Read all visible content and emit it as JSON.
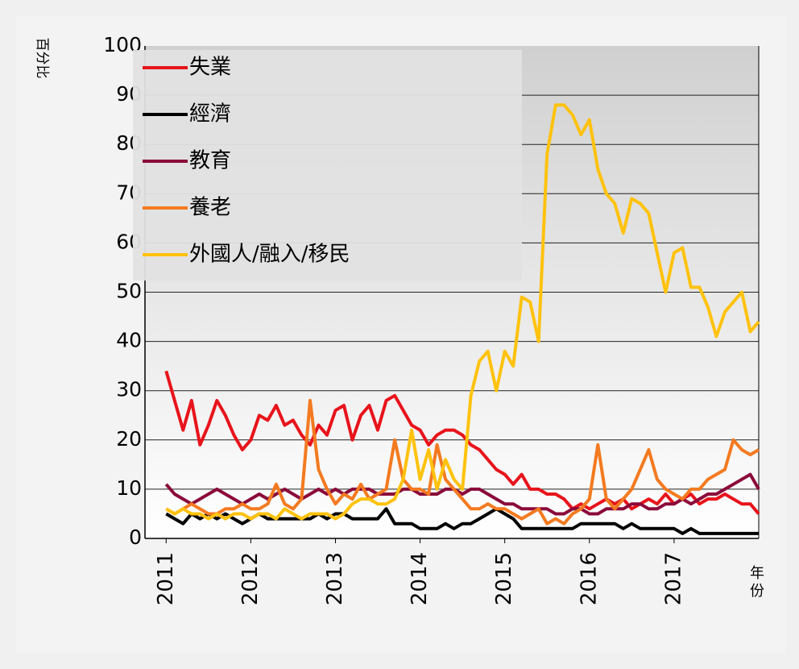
{
  "chart_data": {
    "type": "line",
    "y_label": "百分比",
    "x_label": "年份",
    "x": [
      2011.0,
      2011.1,
      2011.2,
      2011.3,
      2011.4,
      2011.5,
      2011.6,
      2011.7,
      2011.8,
      2011.9,
      2012.0,
      2012.1,
      2012.2,
      2012.3,
      2012.4,
      2012.5,
      2012.6,
      2012.7,
      2012.8,
      2012.9,
      2013.0,
      2013.1,
      2013.2,
      2013.3,
      2013.4,
      2013.5,
      2013.6,
      2013.7,
      2013.8,
      2013.9,
      2014.0,
      2014.1,
      2014.2,
      2014.3,
      2014.4,
      2014.5,
      2014.6,
      2014.7,
      2014.8,
      2014.9,
      2015.0,
      2015.1,
      2015.2,
      2015.3,
      2015.4,
      2015.5,
      2015.6,
      2015.7,
      2015.8,
      2015.9,
      2016.0,
      2016.1,
      2016.2,
      2016.3,
      2016.4,
      2016.5,
      2016.6,
      2016.7,
      2016.8,
      2016.9,
      2017.0,
      2017.1,
      2017.2,
      2017.3,
      2017.4,
      2017.5,
      2017.6,
      2017.7,
      2017.8,
      2017.9,
      2018.0
    ],
    "series": [
      {
        "name": "失業",
        "color": "#e8141b",
        "values": [
          34,
          28,
          22,
          28,
          19,
          23,
          28,
          25,
          21,
          18,
          20,
          25,
          24,
          27,
          23,
          24,
          21,
          19,
          23,
          21,
          26,
          27,
          20,
          25,
          27,
          22,
          28,
          29,
          26,
          23,
          22,
          19,
          21,
          22,
          22,
          21,
          19,
          18,
          16,
          14,
          13,
          11,
          13,
          10,
          10,
          9,
          9,
          8,
          6,
          7,
          6,
          7,
          8,
          7,
          8,
          6,
          7,
          8,
          7,
          9,
          7,
          8,
          9,
          7,
          8,
          8,
          9,
          8,
          7,
          7,
          5
        ]
      },
      {
        "name": "經濟",
        "color": "#000000",
        "values": [
          5,
          4,
          3,
          5,
          4,
          5,
          4,
          5,
          4,
          3,
          4,
          5,
          4,
          4,
          4,
          4,
          4,
          4,
          5,
          4,
          5,
          5,
          4,
          4,
          4,
          4,
          6,
          3,
          3,
          3,
          2,
          2,
          2,
          3,
          2,
          3,
          3,
          4,
          5,
          6,
          5,
          4,
          2,
          2,
          2,
          2,
          2,
          2,
          2,
          3,
          3,
          3,
          3,
          3,
          2,
          3,
          2,
          2,
          2,
          2,
          2,
          1,
          2,
          1,
          1,
          1,
          1,
          1,
          1,
          1,
          1
        ]
      },
      {
        "name": "教育",
        "color": "#8b0a3a",
        "values": [
          11,
          9,
          8,
          7,
          8,
          9,
          10,
          9,
          8,
          7,
          8,
          9,
          8,
          9,
          10,
          9,
          8,
          9,
          10,
          9,
          10,
          9,
          10,
          10,
          10,
          9,
          9,
          9,
          10,
          10,
          9,
          9,
          9,
          10,
          10,
          9,
          10,
          10,
          9,
          8,
          7,
          7,
          6,
          6,
          6,
          6,
          5,
          5,
          6,
          6,
          5,
          5,
          6,
          6,
          6,
          7,
          7,
          6,
          6,
          7,
          7,
          8,
          7,
          8,
          9,
          9,
          10,
          11,
          12,
          13,
          10
        ]
      },
      {
        "name": "養老",
        "color": "#f47a20",
        "values": [
          6,
          5,
          6,
          7,
          6,
          5,
          5,
          6,
          6,
          7,
          6,
          6,
          7,
          11,
          7,
          6,
          8,
          28,
          14,
          10,
          7,
          9,
          8,
          11,
          8,
          9,
          10,
          20,
          12,
          10,
          10,
          9,
          19,
          12,
          10,
          8,
          6,
          6,
          7,
          6,
          6,
          5,
          4,
          5,
          6,
          3,
          4,
          3,
          5,
          6,
          8,
          19,
          8,
          6,
          8,
          10,
          14,
          18,
          12,
          10,
          9,
          8,
          10,
          10,
          12,
          13,
          14,
          20,
          18,
          17,
          18
        ]
      },
      {
        "name": "外國人/融入/移民",
        "color": "#ffc20e",
        "values": [
          6,
          5,
          6,
          5,
          5,
          4,
          5,
          4,
          5,
          5,
          4,
          5,
          5,
          4,
          6,
          5,
          4,
          5,
          5,
          5,
          4,
          5,
          7,
          8,
          8,
          7,
          7,
          8,
          12,
          22,
          12,
          18,
          10,
          16,
          12,
          10,
          29,
          36,
          38,
          30,
          38,
          35,
          49,
          48,
          40,
          78,
          88,
          88,
          86,
          82,
          85,
          75,
          70,
          68,
          62,
          69,
          68,
          66,
          58,
          50,
          58,
          59,
          51,
          51,
          47,
          41,
          46,
          48,
          50,
          42,
          44
        ]
      }
    ],
    "xlim": [
      2010.75,
      2018.0
    ],
    "xticks": [
      2011,
      2012,
      2013,
      2014,
      2015,
      2016,
      2017
    ],
    "ylim": [
      0,
      100
    ],
    "yticks": [
      0,
      10,
      20,
      30,
      40,
      50,
      60,
      70,
      80,
      90,
      100
    ],
    "grid": true,
    "legend": "upper left"
  }
}
